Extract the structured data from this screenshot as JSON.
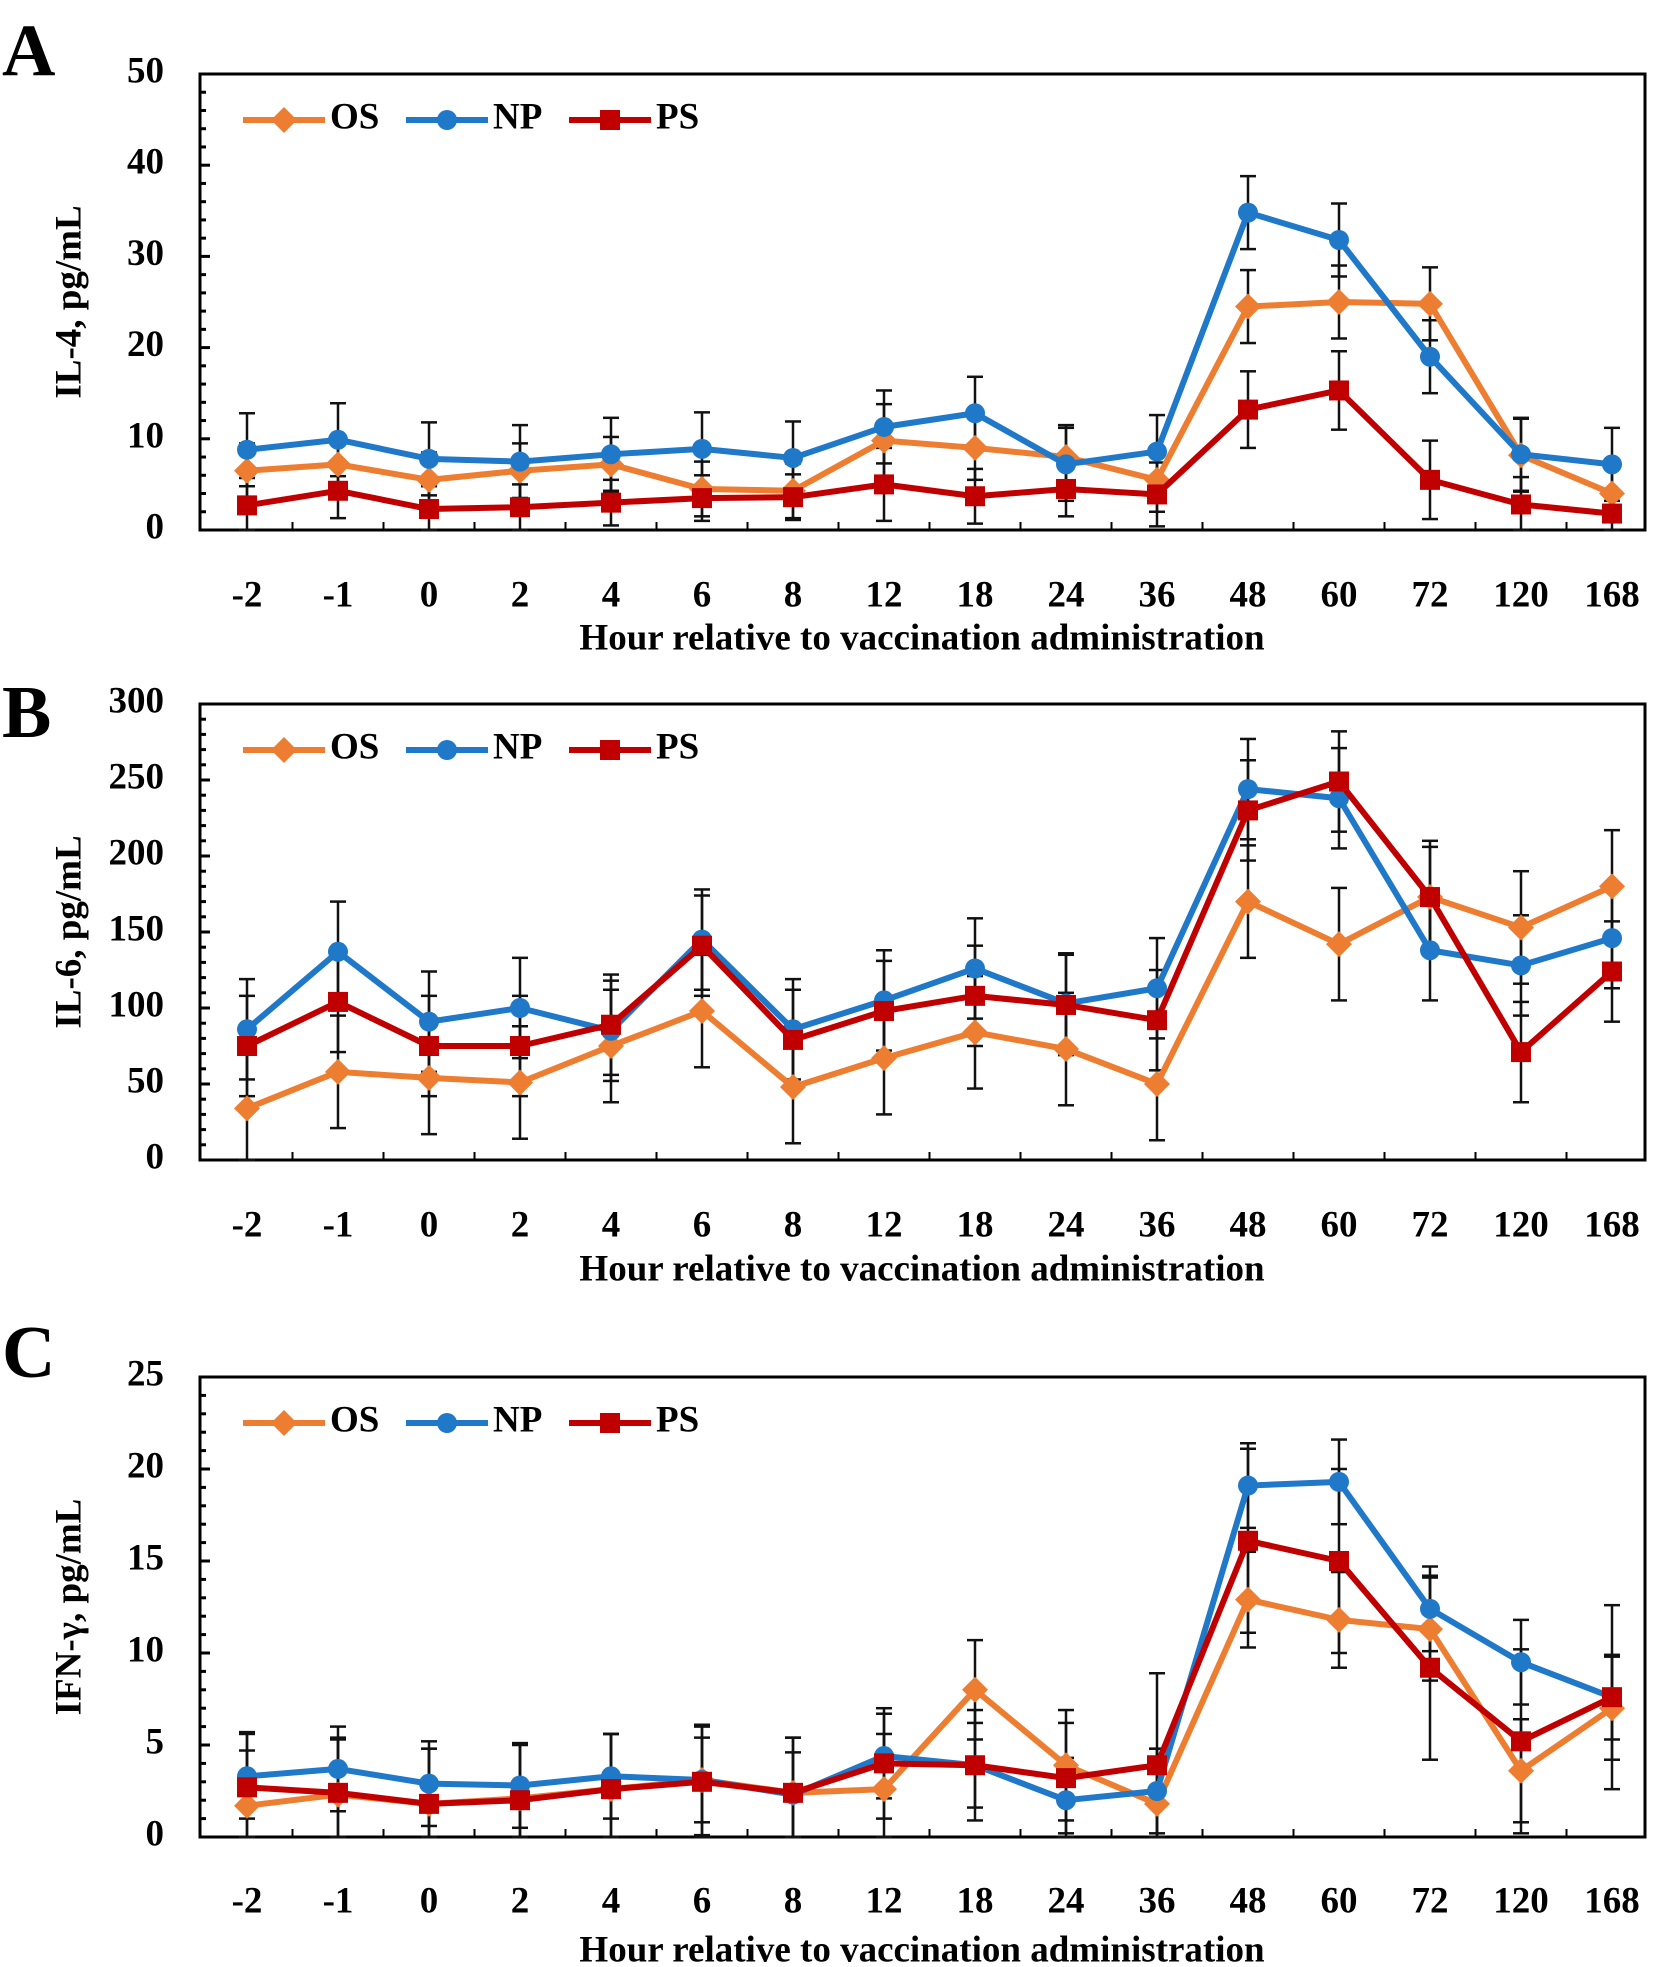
{
  "figure": {
    "x_categories": [
      "-2",
      "-1",
      "0",
      "2",
      "4",
      "6",
      "8",
      "12",
      "18",
      "24",
      "36",
      "48",
      "60",
      "72",
      "120",
      "168"
    ],
    "series_colors": {
      "OS": "#ed7d31",
      "NP": "#1f78c8",
      "PS": "#c00000"
    }
  },
  "chart_data": [
    {
      "type": "line",
      "panel_label": "A",
      "title": "",
      "xlabel": "Hour relative to vaccination administration",
      "ylabel": "IL-4, pg/mL",
      "ylim": [
        0,
        50
      ],
      "y_ticks": [
        0,
        10,
        20,
        30,
        40,
        50
      ],
      "categories": [
        "-2",
        "-1",
        "0",
        "2",
        "4",
        "6",
        "8",
        "12",
        "18",
        "24",
        "36",
        "48",
        "60",
        "72",
        "120",
        "168"
      ],
      "legend": [
        "OS",
        "NP",
        "PS"
      ],
      "series": [
        {
          "name": "OS",
          "marker": "diamond",
          "values": [
            6.5,
            7.2,
            5.5,
            6.5,
            7.2,
            4.5,
            4.3,
            9.8,
            9.0,
            8.0,
            5.5,
            24.5,
            25.0,
            24.8,
            8.2,
            4.0
          ],
          "errors": [
            3.0,
            3.0,
            3.0,
            3.0,
            3.0,
            3.0,
            3.0,
            4.0,
            3.5,
            3.5,
            3.5,
            4.0,
            4.0,
            4.0,
            4.0,
            3.0
          ]
        },
        {
          "name": "NP",
          "marker": "circle",
          "values": [
            8.8,
            9.9,
            7.8,
            7.5,
            8.3,
            8.9,
            7.9,
            11.3,
            12.8,
            7.2,
            8.6,
            34.8,
            31.8,
            19.0,
            8.3,
            7.2
          ],
          "errors": [
            4.0,
            4.0,
            4.0,
            4.0,
            4.0,
            4.0,
            4.0,
            4.0,
            4.0,
            4.0,
            4.0,
            4.0,
            4.0,
            4.0,
            4.0,
            4.0
          ]
        },
        {
          "name": "PS",
          "marker": "square",
          "values": [
            2.7,
            4.3,
            2.3,
            2.5,
            3.0,
            3.5,
            3.6,
            5.0,
            3.7,
            4.5,
            3.9,
            13.2,
            15.3,
            5.5,
            2.8,
            1.8
          ],
          "errors": [
            3.0,
            3.0,
            2.5,
            2.5,
            2.5,
            2.5,
            2.5,
            4.0,
            3.0,
            3.0,
            3.5,
            4.2,
            4.3,
            4.3,
            3.0,
            2.5
          ]
        }
      ]
    },
    {
      "type": "line",
      "panel_label": "B",
      "title": "",
      "xlabel": "Hour relative to vaccination administration",
      "ylabel": "IL-6, pg/mL",
      "ylim": [
        0,
        300
      ],
      "y_ticks": [
        0,
        50,
        100,
        150,
        200,
        250,
        300
      ],
      "categories": [
        "-2",
        "-1",
        "0",
        "2",
        "4",
        "6",
        "8",
        "12",
        "18",
        "24",
        "36",
        "48",
        "60",
        "72",
        "120",
        "168"
      ],
      "legend": [
        "OS",
        "NP",
        "PS"
      ],
      "series": [
        {
          "name": "OS",
          "marker": "diamond",
          "values": [
            34,
            58,
            54,
            51,
            75,
            98,
            48,
            67,
            84,
            73,
            50,
            170,
            142,
            173,
            153,
            180
          ],
          "errors": [
            37,
            37,
            37,
            37,
            37,
            37,
            37,
            37,
            37,
            37,
            37,
            37,
            37,
            37,
            37,
            37
          ]
        },
        {
          "name": "NP",
          "marker": "circle",
          "values": [
            86,
            137,
            91,
            100,
            85,
            145,
            86,
            105,
            126,
            103,
            113,
            244,
            238,
            138,
            128,
            146
          ],
          "errors": [
            33,
            33,
            33,
            33,
            33,
            33,
            33,
            33,
            33,
            33,
            33,
            33,
            33,
            33,
            33,
            33
          ]
        },
        {
          "name": "PS",
          "marker": "square",
          "values": [
            75,
            104,
            75,
            75,
            89,
            141,
            79,
            98,
            108,
            102,
            92,
            230,
            249,
            173,
            71,
            124
          ],
          "errors": [
            33,
            33,
            33,
            33,
            33,
            33,
            33,
            33,
            33,
            33,
            33,
            33,
            33,
            33,
            33,
            33
          ]
        }
      ]
    },
    {
      "type": "line",
      "panel_label": "C",
      "title": "",
      "xlabel": "Hour relative to vaccination administration",
      "ylabel": "IFN-γ, pg/mL",
      "ylim": [
        0,
        25
      ],
      "y_ticks": [
        0,
        5,
        10,
        15,
        20,
        25
      ],
      "categories": [
        "-2",
        "-1",
        "0",
        "2",
        "4",
        "6",
        "8",
        "12",
        "18",
        "24",
        "36",
        "48",
        "60",
        "72",
        "120",
        "168"
      ],
      "legend": [
        "OS",
        "NP",
        "PS"
      ],
      "series": [
        {
          "name": "OS",
          "marker": "diamond",
          "values": [
            1.7,
            2.3,
            1.8,
            2.1,
            2.6,
            3.1,
            2.4,
            2.6,
            8.0,
            3.9,
            1.8,
            12.9,
            11.8,
            11.3,
            3.6,
            7.0
          ],
          "errors": [
            3.0,
            3.0,
            3.0,
            3.0,
            3.0,
            3.0,
            3.0,
            3.0,
            2.7,
            3.0,
            3.0,
            2.6,
            2.6,
            2.8,
            2.8,
            2.8
          ]
        },
        {
          "name": "NP",
          "marker": "circle",
          "values": [
            3.3,
            3.7,
            2.9,
            2.8,
            3.3,
            3.1,
            2.3,
            4.4,
            3.9,
            2.0,
            2.5,
            19.1,
            19.3,
            12.4,
            9.5,
            7.6
          ],
          "errors": [
            2.3,
            2.3,
            2.3,
            2.3,
            2.3,
            2.3,
            2.3,
            2.3,
            2.3,
            2.3,
            2.3,
            2.3,
            2.3,
            2.3,
            2.3,
            2.3
          ]
        },
        {
          "name": "PS",
          "marker": "square",
          "values": [
            2.7,
            2.4,
            1.8,
            2.0,
            2.6,
            3.0,
            2.4,
            4.0,
            3.9,
            3.2,
            3.9,
            16.1,
            15.0,
            9.2,
            5.2,
            7.6
          ],
          "errors": [
            3.0,
            3.0,
            3.0,
            3.0,
            3.0,
            3.0,
            3.0,
            3.0,
            3.0,
            3.0,
            5.0,
            5.0,
            5.0,
            5.0,
            5.0,
            5.0
          ]
        }
      ]
    }
  ]
}
